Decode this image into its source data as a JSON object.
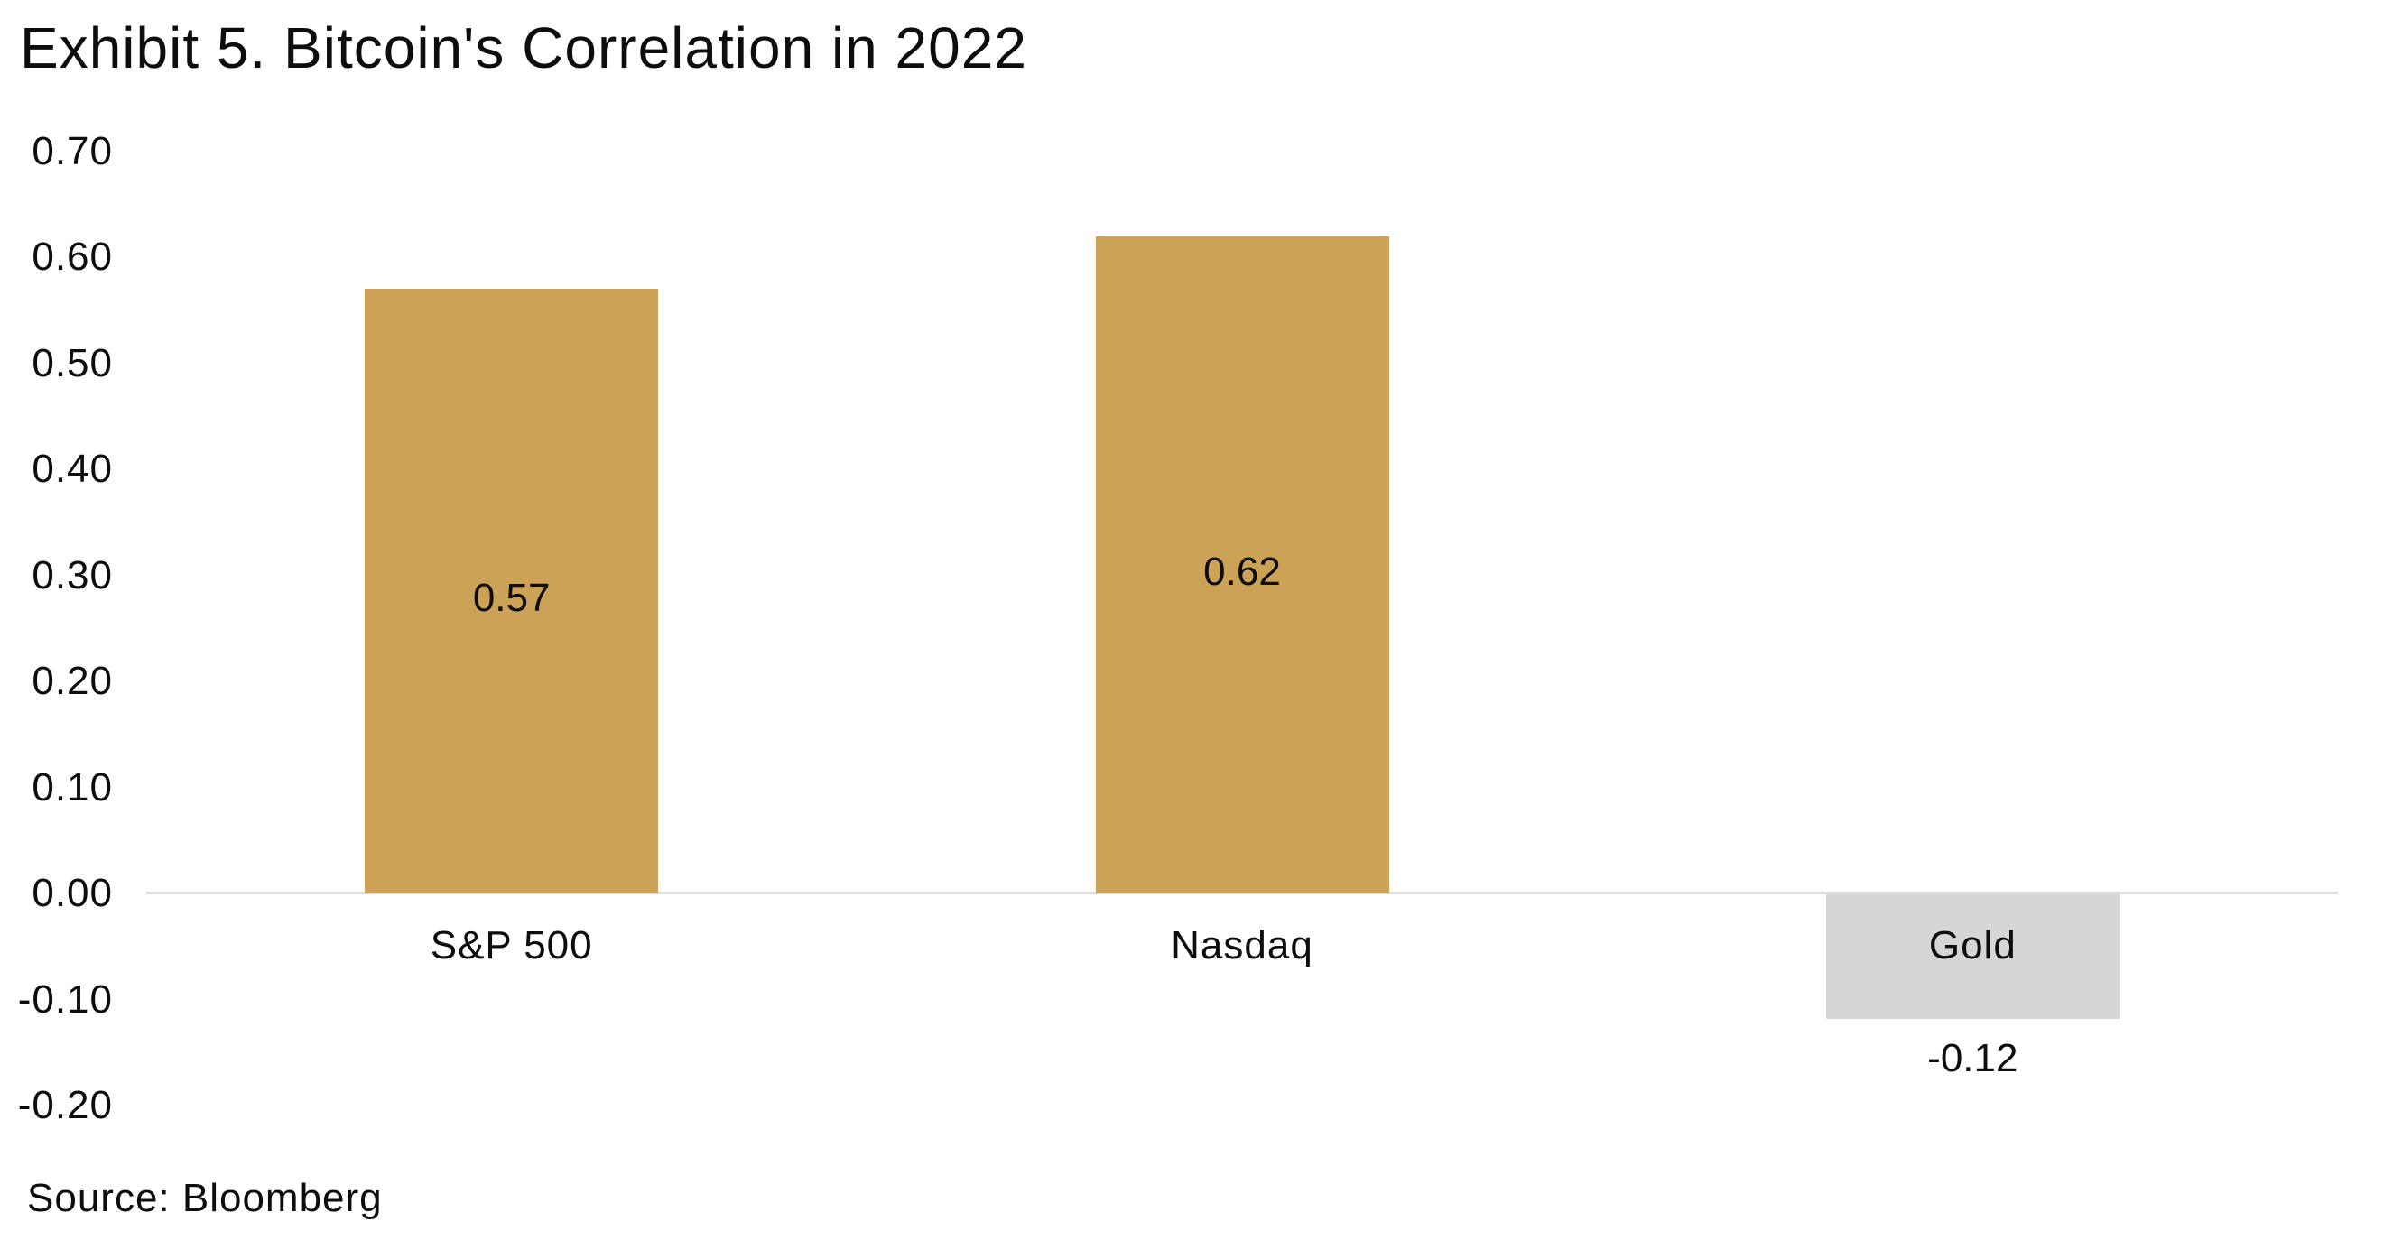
{
  "chart_data": {
    "type": "bar",
    "title": "Exhibit 5. Bitcoin's Correlation in 2022",
    "categories": [
      "S&P 500",
      "Nasdaq",
      "Gold"
    ],
    "values": [
      0.57,
      0.62,
      -0.12
    ],
    "value_labels": [
      "0.57",
      "0.62",
      "-0.12"
    ],
    "bar_colors": [
      "#CCA257",
      "#CCA257",
      "#D6D6D6"
    ],
    "ytick_labels": [
      "0.70",
      "0.60",
      "0.50",
      "0.40",
      "0.30",
      "0.20",
      "0.10",
      "0.00",
      "-0.10",
      "-0.20"
    ],
    "ylim": [
      -0.2,
      0.7
    ],
    "grid": false,
    "legend": false,
    "axis_line_color": "#D9D9D9",
    "text_color": "#0d0d0d",
    "source": "Source: Bloomberg"
  }
}
